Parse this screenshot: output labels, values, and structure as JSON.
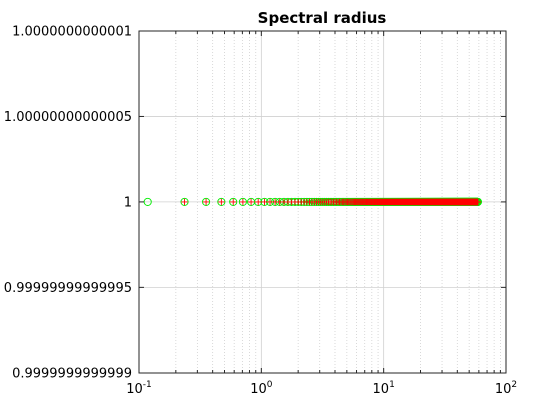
{
  "chart_data": {
    "type": "scatter",
    "title": "Spectral radius",
    "xlabel": "",
    "ylabel": "",
    "x_scale": "log",
    "xlim": [
      0.1,
      100
    ],
    "ylim": [
      0.9999999999999,
      1.0000000000001
    ],
    "x_ticks": [
      {
        "value": 0.1,
        "base": "10",
        "exp": "-1"
      },
      {
        "value": 1,
        "base": "10",
        "exp": "0"
      },
      {
        "value": 10,
        "base": "10",
        "exp": "1"
      },
      {
        "value": 100,
        "base": "10",
        "exp": "2"
      }
    ],
    "y_ticks": [
      {
        "value": 1.0000000000001,
        "label": "1.0000000000001"
      },
      {
        "value": 1.00000000000005,
        "label": "1.00000000000005"
      },
      {
        "value": 1,
        "label": "1"
      },
      {
        "value": 0.99999999999995,
        "label": "0.99999999999995"
      },
      {
        "value": 0.9999999999999,
        "label": "0.9999999999999"
      }
    ],
    "grid": true,
    "minor_grid": true,
    "colors": {
      "circle_marker": "#00ee00",
      "cross_marker": "#ff0000",
      "grid": "#d0d0d0",
      "axis": "#262626"
    },
    "series": [
      {
        "marker": "circle",
        "color": "#00ee00",
        "x_start": 0.1178,
        "x_step": 0.1178,
        "count": 500,
        "y": 1
      },
      {
        "marker": "plus",
        "color": "#ff0000",
        "x_start": 0.2356,
        "x_step": 0.1178,
        "count": 499,
        "y": 1
      }
    ]
  }
}
